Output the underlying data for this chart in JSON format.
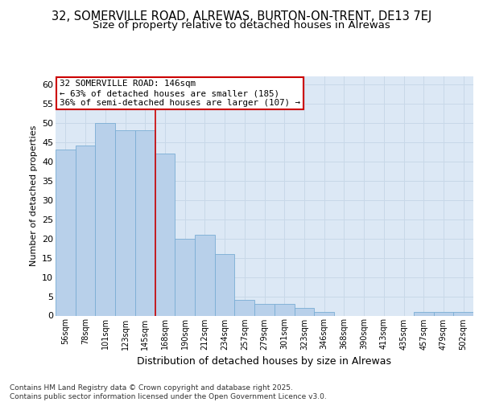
{
  "title1": "32, SOMERVILLE ROAD, ALREWAS, BURTON-ON-TRENT, DE13 7EJ",
  "title2": "Size of property relative to detached houses in Alrewas",
  "xlabel": "Distribution of detached houses by size in Alrewas",
  "ylabel": "Number of detached properties",
  "categories": [
    "56sqm",
    "78sqm",
    "101sqm",
    "123sqm",
    "145sqm",
    "168sqm",
    "190sqm",
    "212sqm",
    "234sqm",
    "257sqm",
    "279sqm",
    "301sqm",
    "323sqm",
    "346sqm",
    "368sqm",
    "390sqm",
    "413sqm",
    "435sqm",
    "457sqm",
    "479sqm",
    "502sqm"
  ],
  "values": [
    43,
    44,
    50,
    48,
    48,
    42,
    20,
    21,
    16,
    4,
    3,
    3,
    2,
    1,
    0,
    0,
    0,
    0,
    1,
    1,
    1
  ],
  "bar_color": "#b8d0ea",
  "bar_edge_color": "#7aadd4",
  "vline_color": "#cc0000",
  "annotation_text": "32 SOMERVILLE ROAD: 146sqm\n← 63% of detached houses are smaller (185)\n36% of semi-detached houses are larger (107) →",
  "annotation_box_color": "#ffffff",
  "annotation_box_edge": "#cc0000",
  "ylim": [
    0,
    62
  ],
  "yticks": [
    0,
    5,
    10,
    15,
    20,
    25,
    30,
    35,
    40,
    45,
    50,
    55,
    60
  ],
  "grid_color": "#c8d8e8",
  "bg_color": "#dce8f5",
  "footer": "Contains HM Land Registry data © Crown copyright and database right 2025.\nContains public sector information licensed under the Open Government Licence v3.0.",
  "title_fontsize": 10.5,
  "subtitle_fontsize": 9.5
}
